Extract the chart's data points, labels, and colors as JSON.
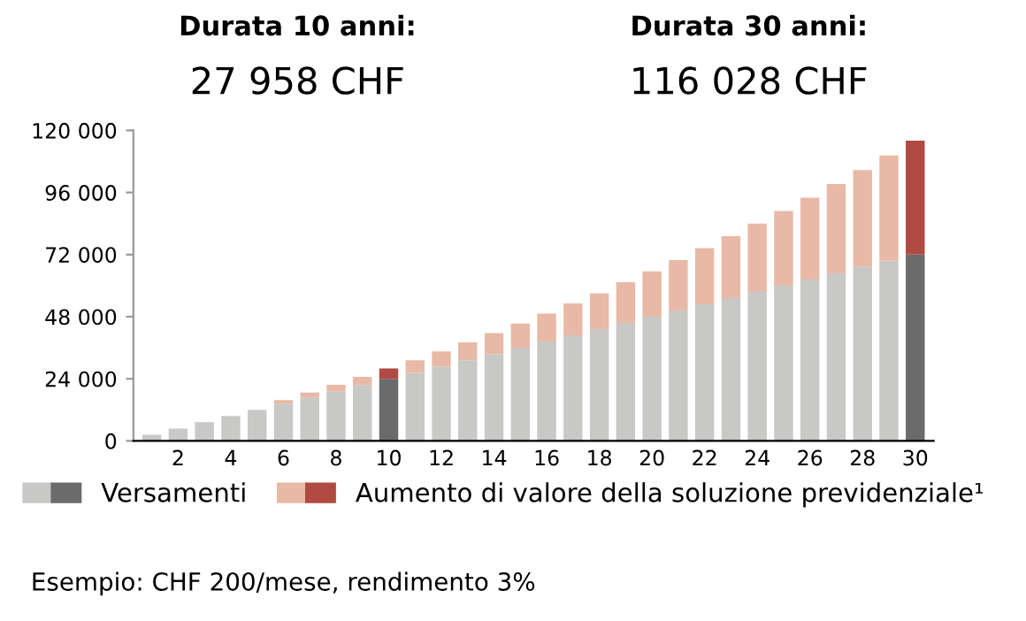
{
  "chart_data": {
    "type": "bar",
    "stacked": true,
    "categories": [
      null,
      "2",
      null,
      "4",
      null,
      "6",
      null,
      "8",
      null,
      "10",
      null,
      "12",
      null,
      "14",
      null,
      "16",
      null,
      "18",
      null,
      "20",
      null,
      "22",
      null,
      "24",
      null,
      "26",
      null,
      "28",
      null,
      "30"
    ],
    "series": [
      {
        "name": "Versamenti",
        "colors": [
          "#c8c8c6",
          "#c8c8c6",
          "#c8c8c6",
          "#c8c8c6",
          "#c8c8c6",
          "#c8c8c6",
          "#c8c8c6",
          "#c8c8c6",
          "#c8c8c6",
          "#6b6b6b",
          "#c8c8c6",
          "#c8c8c6",
          "#c8c8c6",
          "#c8c8c6",
          "#c8c8c6",
          "#c8c8c6",
          "#c8c8c6",
          "#c8c8c6",
          "#c8c8c6",
          "#c8c8c6",
          "#c8c8c6",
          "#c8c8c6",
          "#c8c8c6",
          "#c8c8c6",
          "#c8c8c6",
          "#c8c8c6",
          "#c8c8c6",
          "#c8c8c6",
          "#c8c8c6",
          "#6b6b6b"
        ],
        "values": [
          2400,
          4800,
          7200,
          9600,
          12000,
          14400,
          16800,
          19200,
          21600,
          24000,
          26400,
          28800,
          31200,
          33600,
          36000,
          38400,
          40800,
          43200,
          45600,
          48000,
          50400,
          52800,
          55200,
          57600,
          60000,
          62400,
          64800,
          67200,
          69600,
          72000
        ]
      },
      {
        "name": "Aumento di valore della soluzione previdenziale¹",
        "colors": [
          "#e8b9a6",
          "#e8b9a6",
          "#e8b9a6",
          "#e8b9a6",
          "#e8b9a6",
          "#e8b9a6",
          "#e8b9a6",
          "#e8b9a6",
          "#e8b9a6",
          "#b04a42",
          "#e8b9a6",
          "#e8b9a6",
          "#e8b9a6",
          "#e8b9a6",
          "#e8b9a6",
          "#e8b9a6",
          "#e8b9a6",
          "#e8b9a6",
          "#e8b9a6",
          "#e8b9a6",
          "#e8b9a6",
          "#e8b9a6",
          "#e8b9a6",
          "#e8b9a6",
          "#e8b9a6",
          "#e8b9a6",
          "#e8b9a6",
          "#e8b9a6",
          "#e8b9a6",
          "#b04a42"
        ],
        "values": [
          0,
          null,
          null,
          null,
          null,
          1400,
          1900,
          2500,
          3200,
          4000,
          4800,
          5800,
          6900,
          8100,
          9400,
          10800,
          12300,
          13900,
          15700,
          17500,
          19500,
          21700,
          23900,
          26400,
          28900,
          31600,
          34500,
          37500,
          40700,
          44000
        ]
      }
    ],
    "ylim": [
      0,
      120000
    ],
    "yticks": [
      0,
      {
        "value": 24000,
        "label": "24 000"
      },
      {
        "value": 48000,
        "label": "48 000"
      },
      {
        "value": 72000,
        "label": "72 000"
      },
      {
        "value": 96000,
        "label": "96 000"
      },
      {
        "value": 120000,
        "label": "120 000"
      }
    ],
    "annotations": [
      "Durata 10 anni:",
      "27 958 CHF",
      "Durata 30 anni:",
      "116 028 CHF",
      "Esempio: CHF 200/mese, rendimento 3%"
    ],
    "legend": "bottom",
    "grid": false
  }
}
